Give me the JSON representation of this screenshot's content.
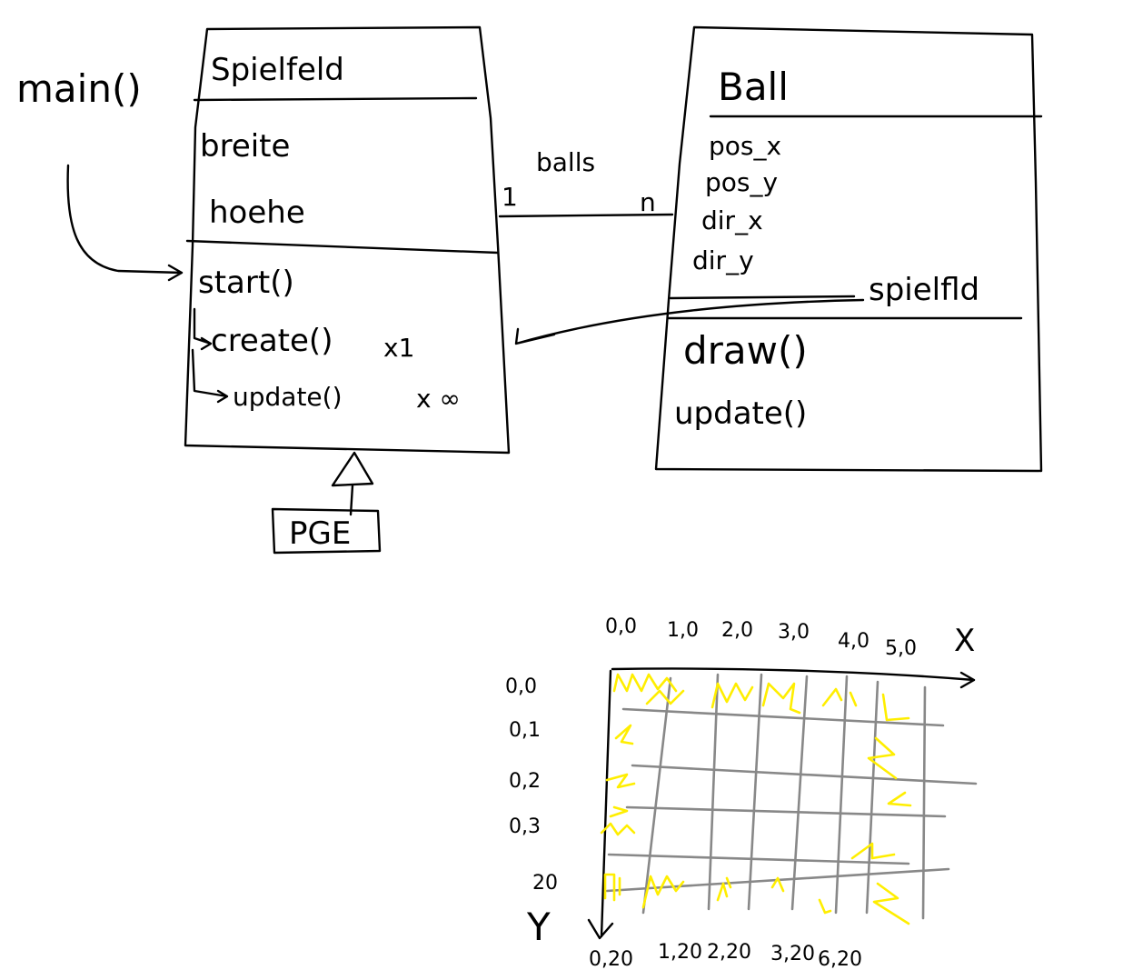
{
  "colors": {
    "ink": "#000000",
    "grid": "#888888",
    "highlight": "#ffee00",
    "background": "#ffffff"
  },
  "entry": {
    "label": "main()"
  },
  "spielfeld": {
    "title": "Spielfeld",
    "attributes": [
      "breite",
      "hoehe"
    ],
    "methods": [
      "start()",
      "create()",
      "update()"
    ],
    "create_note": "x1",
    "update_note": "x ∞"
  },
  "association": {
    "label": "balls",
    "multiplicity_left": "1",
    "multiplicity_right": "n"
  },
  "ball": {
    "title": "Ball",
    "attributes": [
      "pos_x",
      "pos_y",
      "dir_x",
      "dir_y"
    ],
    "reference_label": "spielfld",
    "methods": [
      "draw()",
      "update()"
    ]
  },
  "parent": {
    "label": "PGE"
  },
  "coordinate_grid": {
    "x_axis_label": "X",
    "y_axis_label": "Y",
    "top_labels": [
      "0,0",
      "1,0",
      "2,0",
      "3,0",
      "4,0",
      "5,0"
    ],
    "left_labels": [
      "0,0",
      "0,1",
      "0,2",
      "0,3",
      "20"
    ],
    "bottom_labels": [
      "0,20",
      "1,20",
      "2,20",
      "3,20",
      "6,20"
    ]
  }
}
